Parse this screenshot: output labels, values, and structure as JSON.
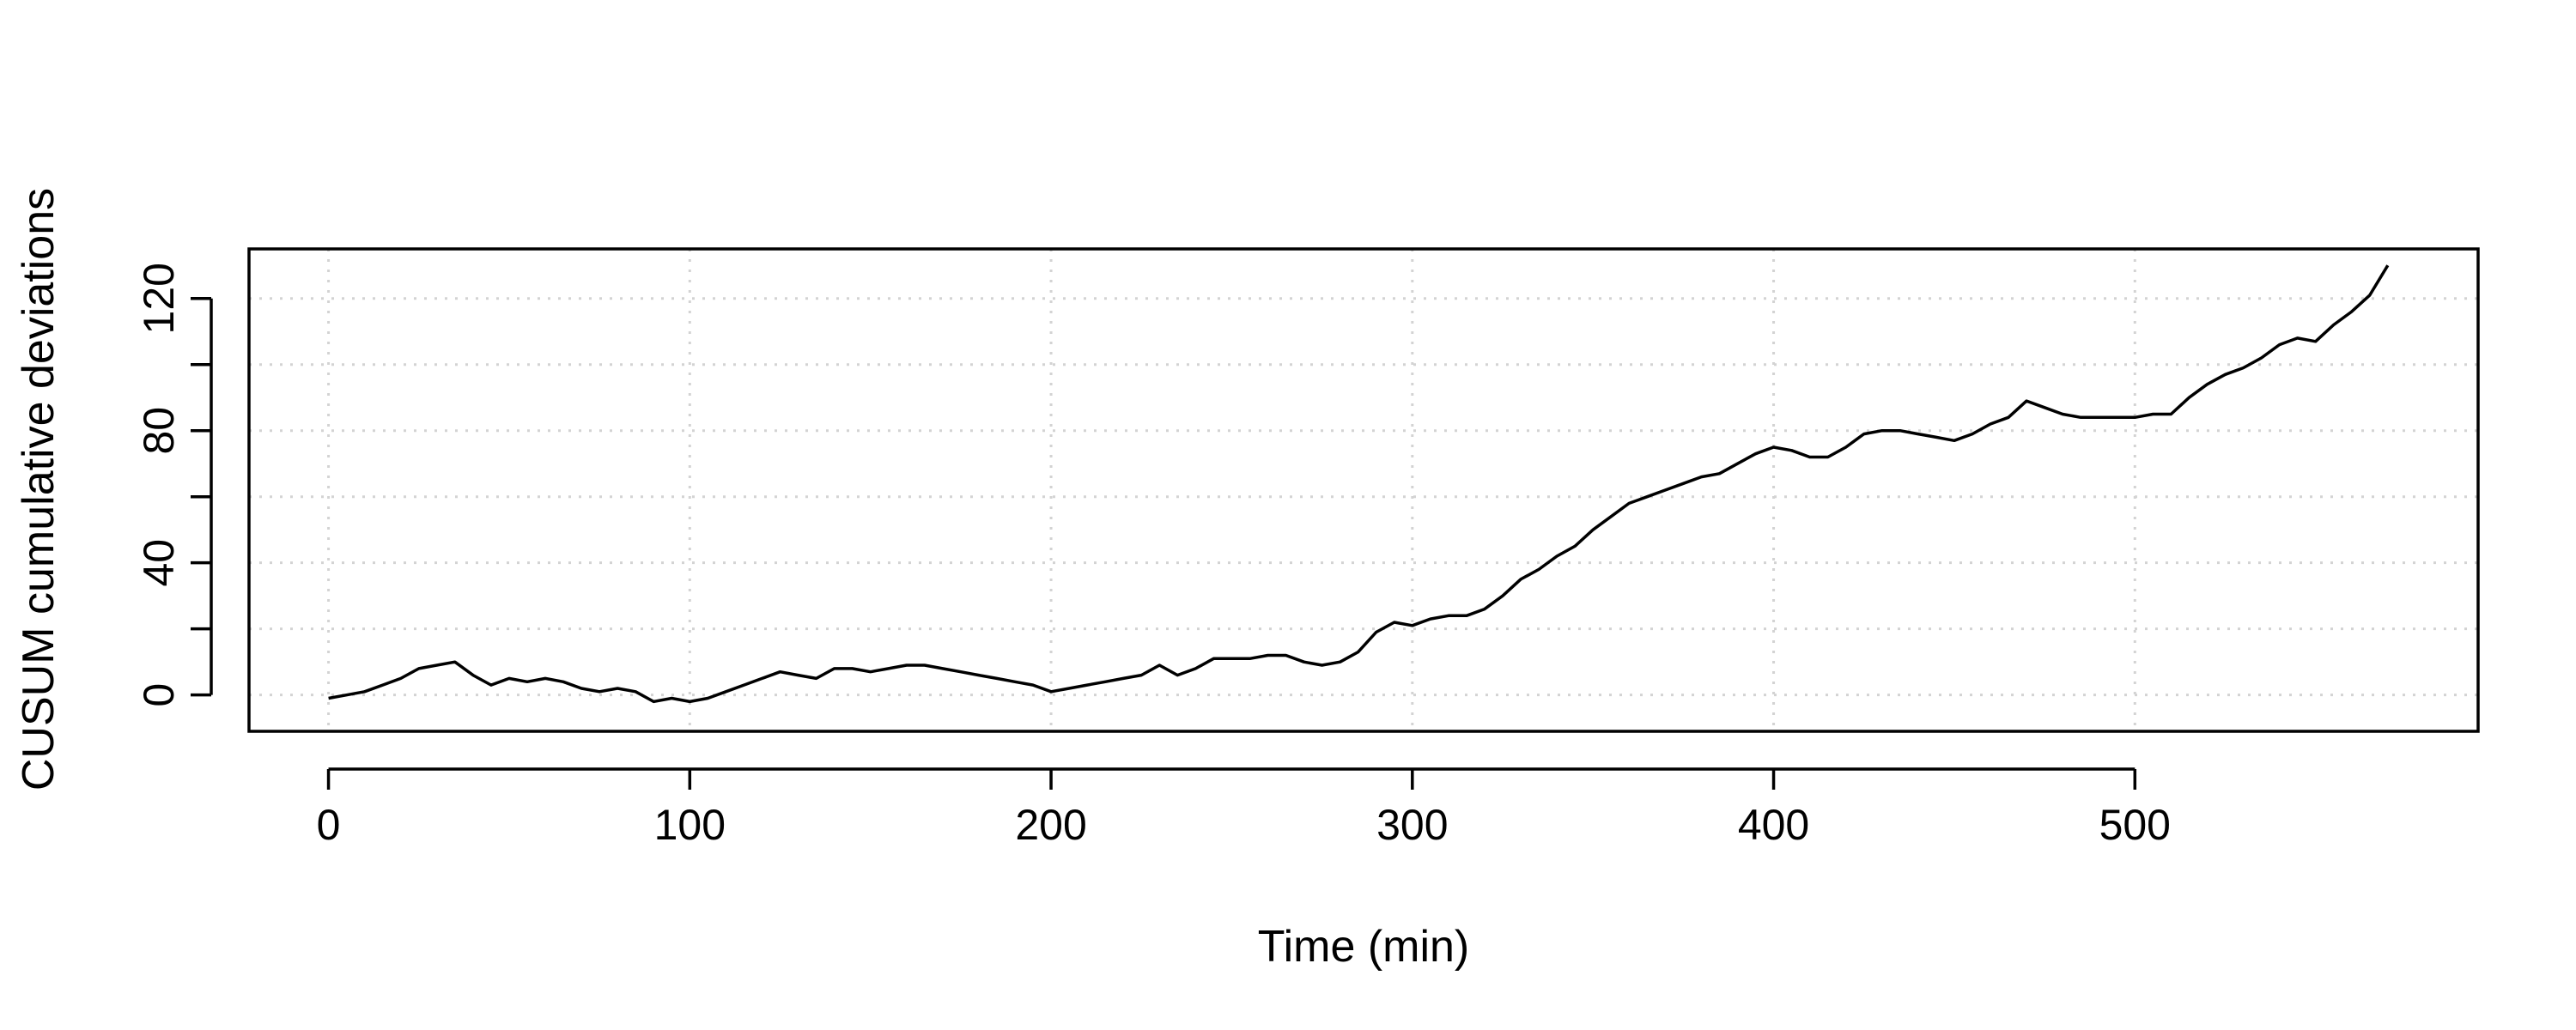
{
  "chart_data": {
    "type": "line",
    "title": "",
    "xlabel": "Time (min)",
    "ylabel": "CUSUM cumulative deviations",
    "xlim": [
      -22,
      595
    ],
    "ylim": [
      -11,
      135
    ],
    "x_ticks": [
      0,
      100,
      200,
      300,
      400,
      500
    ],
    "x_tick_labels": [
      "0",
      "100",
      "200",
      "300",
      "400",
      "500"
    ],
    "y_ticks": [
      0,
      40,
      80,
      120
    ],
    "y_tick_labels": [
      "0",
      "40",
      "80",
      "120"
    ],
    "y_minor_ticks": [
      20,
      60,
      100
    ],
    "grid": true,
    "legend": "none",
    "line_color": "#000000",
    "grid_color": "#d3d3d3",
    "series": [
      {
        "x": [
          0,
          5,
          10,
          15,
          20,
          25,
          30,
          35,
          40,
          45,
          50,
          55,
          60,
          65,
          70,
          75,
          80,
          85,
          90,
          95,
          100,
          105,
          110,
          115,
          120,
          125,
          130,
          135,
          140,
          145,
          150,
          155,
          160,
          165,
          170,
          175,
          180,
          185,
          190,
          195,
          200,
          205,
          210,
          215,
          220,
          225,
          230,
          235,
          240,
          245,
          250,
          255,
          260,
          265,
          270,
          275,
          280,
          285,
          290,
          295,
          300,
          305,
          310,
          315,
          320,
          325,
          330,
          335,
          340,
          345,
          350,
          355,
          360,
          365,
          370,
          375,
          380,
          385,
          390,
          395,
          400,
          405,
          410,
          415,
          420,
          425,
          430,
          435,
          440,
          445,
          450,
          455,
          460,
          465,
          470,
          475,
          480,
          485,
          490,
          495,
          500,
          505,
          510,
          515,
          520,
          525,
          530,
          535,
          540,
          545,
          550,
          555,
          560,
          565,
          570
        ],
        "values": [
          -1,
          0,
          1,
          3,
          5,
          8,
          9,
          10,
          6,
          3,
          5,
          4,
          5,
          4,
          2,
          1,
          2,
          1,
          -2,
          -1,
          -2,
          -1,
          1,
          3,
          5,
          7,
          6,
          5,
          8,
          8,
          7,
          8,
          9,
          9,
          8,
          7,
          6,
          5,
          4,
          3,
          1,
          2,
          3,
          4,
          5,
          6,
          9,
          6,
          8,
          11,
          11,
          11,
          12,
          12,
          10,
          9,
          10,
          13,
          19,
          22,
          21,
          23,
          24,
          24,
          26,
          30,
          35,
          38,
          42,
          45,
          50,
          54,
          58,
          60,
          62,
          64,
          66,
          67,
          70,
          73,
          75,
          74,
          72,
          72,
          75,
          79,
          80,
          80,
          79,
          78,
          77,
          79,
          82,
          84,
          89,
          87,
          85,
          84,
          84,
          84,
          84,
          85,
          85,
          90,
          94,
          97,
          99,
          102,
          106,
          108,
          107,
          112,
          116,
          121,
          130
        ]
      }
    ]
  }
}
